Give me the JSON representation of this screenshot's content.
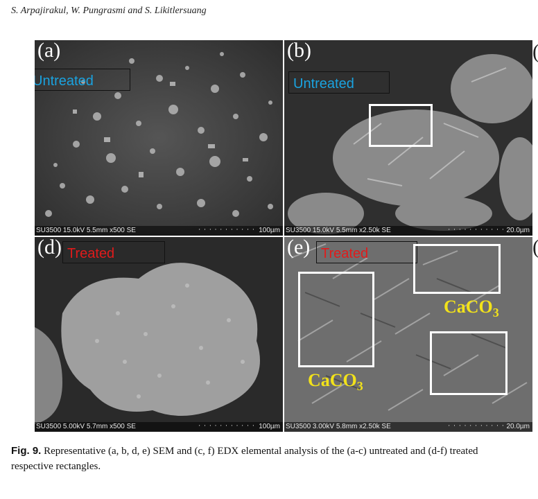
{
  "running_head": "S. Arpajirakul, W. Pungrasmi and S. Likitlersuang",
  "panels": [
    {
      "letter": "(a)",
      "label": "Untreated",
      "info": "SU3500 15.0kV 5.5mm x500 SE",
      "scale": "100µm"
    },
    {
      "letter": "(b)",
      "label": "Untreated",
      "info": "SU3500 15.0kV 5.5mm x2.50k SE",
      "scale": "20.0µm"
    },
    {
      "letter": "(d)",
      "label": "Treated",
      "info": "SU3500 5.00kV 5.7mm x500 SE",
      "scale": "100µm"
    },
    {
      "letter": "(e)",
      "label": "Treated",
      "info": "SU3500 3.00kV 5.8mm x2.50k SE",
      "scale": "20.0µm"
    }
  ],
  "mineral_labels": [
    {
      "main": "CaCO",
      "sub": "3"
    },
    {
      "main": "CaCO",
      "sub": "3"
    }
  ],
  "edge_glyphs": [
    "(",
    "("
  ],
  "caption": {
    "label": "Fig. 9.",
    "line1": "Representative (a, b, d, e) SEM and (c, f) EDX elemental analysis of the (a-c) untreated and (d-f) treated",
    "line2": "respective rectangles."
  },
  "colors": {
    "untreated_label": "#1aa3e0",
    "treated_label": "#e01b1b",
    "mineral_label": "#f2e21a"
  }
}
